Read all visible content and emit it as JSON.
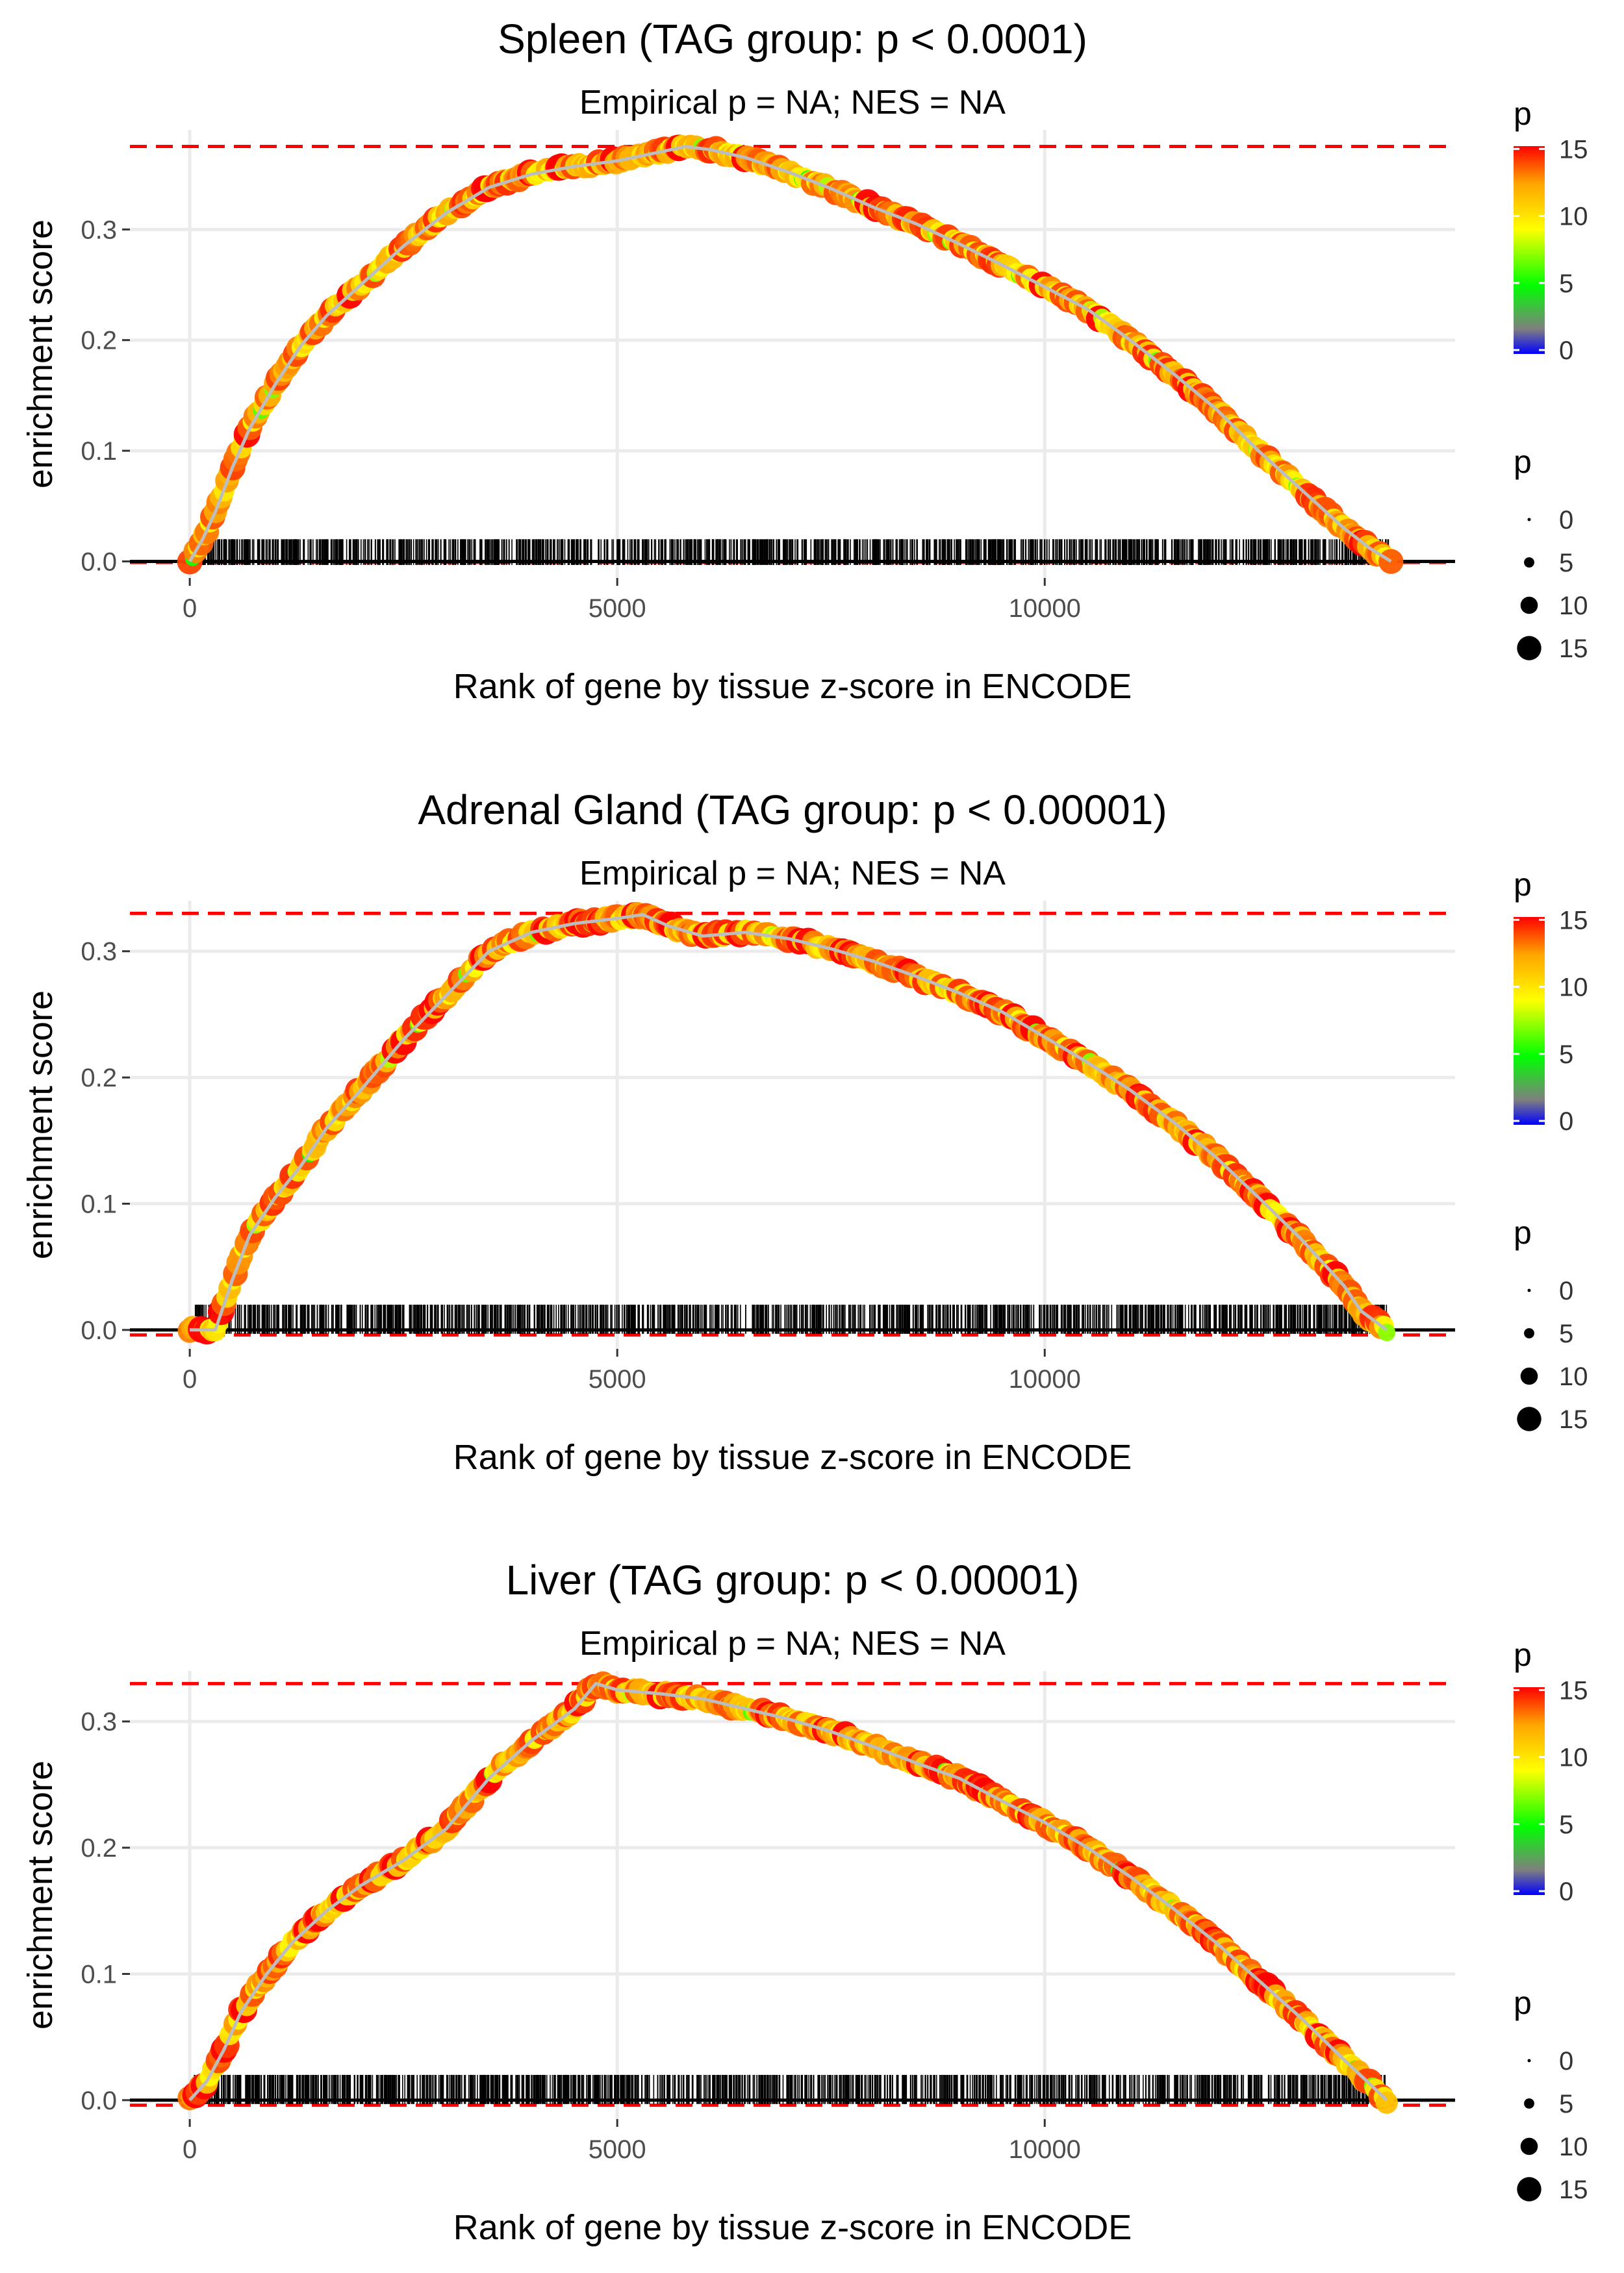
{
  "chart_data": [
    {
      "type": "line",
      "title": "Spleen (TAG group: p < 0.0001)",
      "subtitle": "Empirical p = NA; NES = NA",
      "xlabel": "Rank of gene by tissue z-score in ENCODE",
      "ylabel": "enrichment score",
      "xlim": [
        -700,
        14800
      ],
      "ylim": [
        -0.015,
        0.39
      ],
      "x_ticks": [
        0,
        5000,
        10000
      ],
      "x_tick_labels": [
        "0",
        "5000",
        "10000"
      ],
      "y_ticks": [
        0.0,
        0.1,
        0.2,
        0.3
      ],
      "y_tick_labels": [
        "0.0",
        "0.1",
        "0.2",
        "0.3"
      ],
      "max_es": 0.375,
      "min_es": -0.001,
      "x": [
        0,
        150,
        300,
        500,
        700,
        1000,
        1300,
        1600,
        2000,
        2500,
        3000,
        3500,
        4000,
        4500,
        5000,
        5500,
        5800,
        6100,
        6500,
        7000,
        7500,
        8000,
        8500,
        9000,
        9500,
        10000,
        10500,
        11000,
        11500,
        12000,
        12500,
        13000,
        13500,
        13800,
        14050
      ],
      "y": [
        0.0,
        0.02,
        0.045,
        0.085,
        0.12,
        0.16,
        0.195,
        0.222,
        0.25,
        0.285,
        0.315,
        0.338,
        0.35,
        0.357,
        0.362,
        0.37,
        0.375,
        0.372,
        0.365,
        0.352,
        0.337,
        0.32,
        0.305,
        0.287,
        0.268,
        0.248,
        0.228,
        0.2,
        0.17,
        0.138,
        0.1,
        0.065,
        0.03,
        0.012,
        0.0
      ],
      "hit_count": 1350,
      "grid": true
    },
    {
      "type": "line",
      "title": "Adrenal Gland (TAG group: p < 0.00001)",
      "subtitle": "Empirical p = NA; NES = NA",
      "xlabel": "Rank of gene by tissue z-score in ENCODE",
      "ylabel": "enrichment score",
      "xlim": [
        -700,
        14800
      ],
      "ylim": [
        -0.015,
        0.34
      ],
      "x_ticks": [
        0,
        5000,
        10000
      ],
      "x_tick_labels": [
        "0",
        "5000",
        "10000"
      ],
      "y_ticks": [
        0.0,
        0.1,
        0.2,
        0.3
      ],
      "y_tick_labels": [
        "0.0",
        "0.1",
        "0.2",
        "0.3"
      ],
      "max_es": 0.33,
      "min_es": -0.004,
      "x": [
        0,
        300,
        500,
        700,
        1000,
        1300,
        1600,
        2000,
        2500,
        3000,
        3500,
        4000,
        4500,
        5000,
        5300,
        5600,
        6000,
        6500,
        7000,
        7500,
        8000,
        8500,
        9000,
        9500,
        10000,
        10500,
        11000,
        11500,
        12000,
        12500,
        13000,
        13500,
        13700,
        14000
      ],
      "y": [
        0.0,
        0.0,
        0.04,
        0.075,
        0.105,
        0.13,
        0.16,
        0.19,
        0.23,
        0.265,
        0.3,
        0.315,
        0.322,
        0.326,
        0.329,
        0.32,
        0.312,
        0.315,
        0.31,
        0.302,
        0.292,
        0.28,
        0.267,
        0.252,
        0.232,
        0.212,
        0.19,
        0.165,
        0.137,
        0.105,
        0.072,
        0.035,
        0.015,
        0.0
      ],
      "hit_count": 1350,
      "grid": true
    },
    {
      "type": "line",
      "title": "Liver (TAG group: p < 0.00001)",
      "subtitle": "Empirical p = NA; NES = NA",
      "xlabel": "Rank of gene by tissue z-score in ENCODE",
      "ylabel": "enrichment score",
      "xlim": [
        -700,
        14800
      ],
      "ylim": [
        -0.015,
        0.34
      ],
      "x_ticks": [
        0,
        5000,
        10000
      ],
      "x_tick_labels": [
        "0",
        "5000",
        "10000"
      ],
      "y_ticks": [
        0.0,
        0.1,
        0.2,
        0.3
      ],
      "y_tick_labels": [
        "0.0",
        "0.1",
        "0.2",
        "0.3"
      ],
      "max_es": 0.33,
      "min_es": -0.004,
      "x": [
        0,
        200,
        400,
        600,
        900,
        1200,
        1600,
        2000,
        2500,
        3000,
        3500,
        4000,
        4500,
        4750,
        5000,
        5500,
        6000,
        6500,
        7000,
        7500,
        8000,
        8500,
        9000,
        9500,
        10000,
        10500,
        11000,
        11500,
        12000,
        12500,
        13000,
        13500,
        13800,
        14000
      ],
      "y": [
        0.0,
        0.015,
        0.04,
        0.07,
        0.1,
        0.125,
        0.15,
        0.17,
        0.19,
        0.215,
        0.255,
        0.285,
        0.31,
        0.33,
        0.325,
        0.322,
        0.318,
        0.31,
        0.302,
        0.292,
        0.28,
        0.267,
        0.255,
        0.237,
        0.22,
        0.2,
        0.177,
        0.152,
        0.125,
        0.095,
        0.065,
        0.032,
        0.013,
        0.0
      ],
      "hit_count": 1350,
      "grid": true
    }
  ],
  "legend": {
    "color_title": "p",
    "color_labels": [
      "15",
      "10",
      "5",
      "0"
    ],
    "color_values": [
      15,
      10,
      5,
      0
    ],
    "color_stops": [
      "#0000ff",
      "#7f7f7f",
      "#00ff00",
      "#ffff00",
      "#ffa500",
      "#ff0000"
    ],
    "size_title": "p",
    "size_labels": [
      "0",
      "5",
      "10",
      "15"
    ],
    "size_values": [
      0,
      5,
      10,
      15
    ]
  }
}
